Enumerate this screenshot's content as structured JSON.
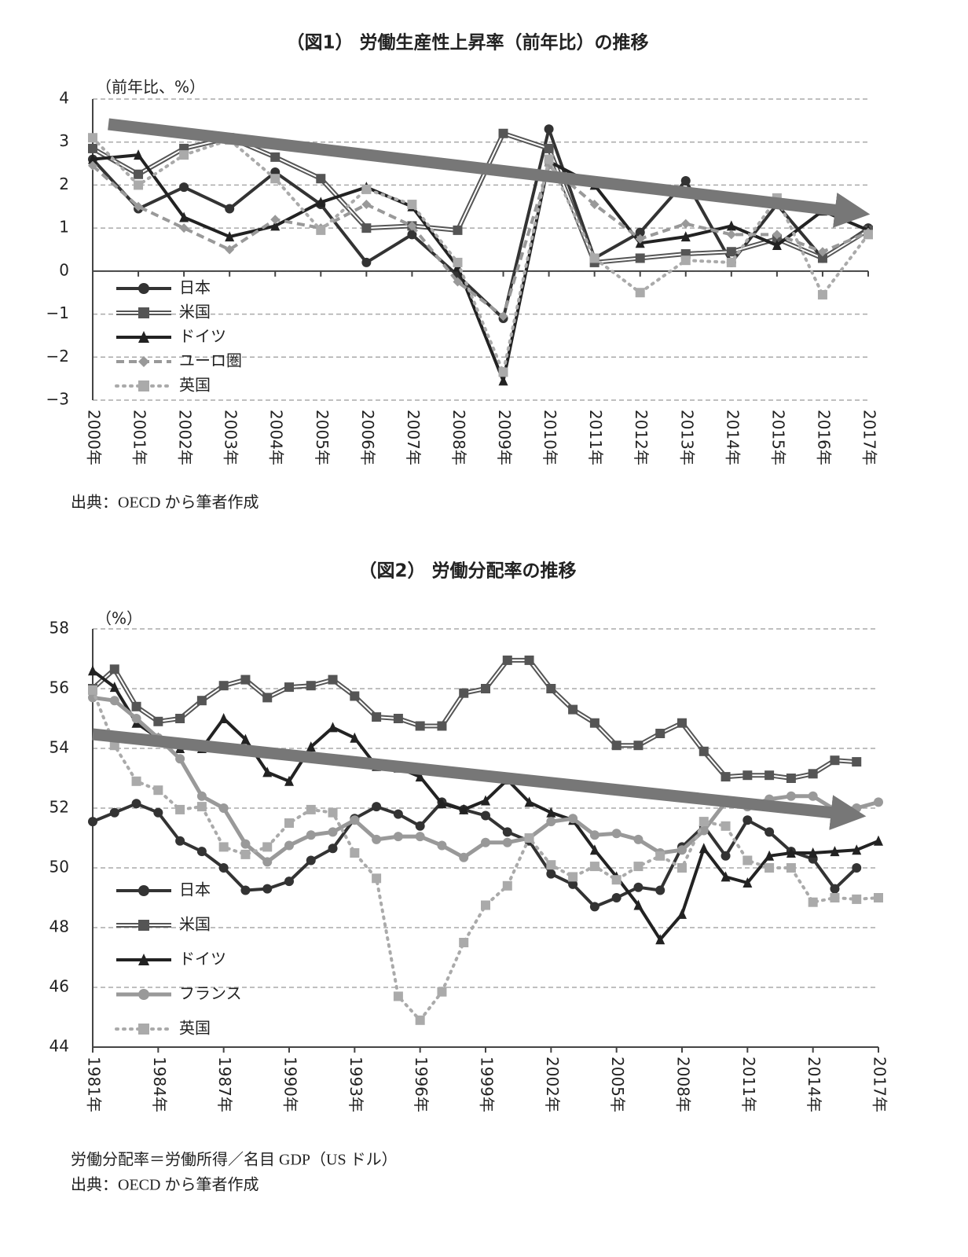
{
  "chart_data": [
    {
      "type": "line",
      "title": "（図1） 労働生産性上昇率（前年比）の推移",
      "y_label": "（前年比、%）",
      "source": "出典：OECD から筆者作成",
      "categories": [
        "2000年",
        "2001年",
        "2002年",
        "2003年",
        "2004年",
        "2005年",
        "2006年",
        "2007年",
        "2008年",
        "2009年",
        "2010年",
        "2011年",
        "2012年",
        "2013年",
        "2014年",
        "2015年",
        "2016年",
        "2017年"
      ],
      "ylim": [
        -3,
        4
      ],
      "yticks": [
        {
          "value": -3,
          "label": "−3"
        },
        {
          "value": -2,
          "label": "−2"
        },
        {
          "value": -1,
          "label": "−1"
        },
        0,
        1,
        2,
        3,
        4
      ],
      "grid": true,
      "series": [
        {
          "name": "日本",
          "color": "#333333",
          "marker": "circle",
          "line_style": "solid",
          "values": [
            2.6,
            1.45,
            1.95,
            1.45,
            2.3,
            1.55,
            0.2,
            0.85,
            -0.1,
            -1.1,
            3.3,
            0.3,
            0.9,
            2.1,
            0.2,
            1.55,
            0.3,
            1.0
          ]
        },
        {
          "name": "米国",
          "color": "#555555",
          "marker": "square",
          "line_style": "double",
          "values": [
            2.85,
            2.25,
            2.85,
            3.1,
            2.65,
            2.15,
            1.0,
            1.05,
            0.95,
            3.2,
            2.85,
            0.2,
            0.3,
            0.4,
            0.45,
            0.75,
            0.3,
            0.95
          ]
        },
        {
          "name": "ドイツ",
          "color": "#222222",
          "marker": "triangle",
          "line_style": "solid",
          "values": [
            2.6,
            2.7,
            1.25,
            0.8,
            1.05,
            1.6,
            1.95,
            1.5,
            0.1,
            -2.55,
            2.55,
            2.0,
            0.65,
            0.8,
            1.05,
            0.6,
            1.4,
            0.95
          ]
        },
        {
          "name": "ユーロ圏",
          "color": "#999999",
          "marker": "diamond",
          "line_style": "dashed",
          "values": [
            2.45,
            1.5,
            1.0,
            0.5,
            1.2,
            1.0,
            1.55,
            1.05,
            -0.25,
            -1.05,
            2.45,
            1.55,
            0.75,
            1.1,
            0.85,
            0.85,
            0.45,
            0.9
          ]
        },
        {
          "name": "英国",
          "color": "#aaaaaa",
          "marker": "square",
          "line_style": "dotted",
          "values": [
            3.1,
            2.0,
            2.7,
            3.05,
            2.15,
            0.95,
            1.9,
            1.55,
            0.2,
            -2.35,
            2.6,
            0.3,
            -0.5,
            0.25,
            0.2,
            1.7,
            -0.55,
            0.85
          ]
        }
      ]
    },
    {
      "type": "line",
      "title": "（図2） 労働分配率の推移",
      "y_label": "（%）",
      "note": "労働分配率＝労働所得／名目 GDP（US ドル）",
      "source": "出典：OECD から筆者作成",
      "categories": [
        "1981年",
        null,
        null,
        "1984年",
        null,
        null,
        "1987年",
        null,
        null,
        "1990年",
        null,
        null,
        "1993年",
        null,
        null,
        "1996年",
        null,
        null,
        "1999年",
        null,
        null,
        "2002年",
        null,
        null,
        "2005年",
        null,
        null,
        "2008年",
        null,
        null,
        "2011年",
        null,
        null,
        "2014年",
        null,
        null,
        "2017年"
      ],
      "ylim": [
        44,
        58
      ],
      "yticks": [
        44,
        46,
        48,
        50,
        52,
        54,
        56,
        58
      ],
      "grid": true,
      "series": [
        {
          "name": "日本",
          "color": "#333333",
          "marker": "circle",
          "line_style": "solid",
          "values": [
            51.55,
            51.85,
            52.15,
            51.85,
            50.9,
            50.55,
            50.0,
            49.25,
            49.3,
            49.55,
            50.25,
            50.65,
            51.65,
            52.05,
            51.8,
            51.4,
            52.2,
            51.95,
            51.75,
            51.2,
            50.9,
            49.8,
            49.45,
            48.7,
            49.0,
            49.35,
            49.25,
            50.7,
            51.4,
            50.4,
            51.6,
            51.2,
            50.55,
            50.3,
            49.3,
            50.0,
            null
          ]
        },
        {
          "name": "米国",
          "color": "#555555",
          "marker": "square",
          "line_style": "double",
          "values": [
            56.0,
            56.65,
            55.4,
            54.9,
            55.0,
            55.6,
            56.1,
            56.3,
            55.7,
            56.05,
            56.1,
            56.3,
            55.75,
            55.05,
            55.0,
            54.75,
            54.75,
            55.85,
            56.0,
            56.95,
            56.95,
            56.0,
            55.3,
            54.85,
            54.1,
            54.1,
            54.5,
            54.85,
            53.9,
            53.05,
            53.1,
            53.1,
            53.0,
            53.15,
            53.6,
            53.55,
            null
          ]
        },
        {
          "name": "ドイツ",
          "color": "#222222",
          "marker": "triangle",
          "line_style": "solid",
          "values": [
            56.6,
            56.05,
            54.85,
            54.35,
            54.0,
            54.0,
            55.0,
            54.3,
            53.2,
            52.9,
            54.05,
            54.7,
            54.35,
            53.4,
            53.35,
            53.05,
            52.15,
            51.95,
            52.25,
            52.95,
            52.2,
            51.85,
            51.6,
            50.6,
            49.7,
            48.75,
            47.6,
            48.45,
            50.65,
            49.7,
            49.5,
            50.4,
            50.5,
            50.5,
            50.55,
            50.6,
            50.9
          ]
        },
        {
          "name": "フランス",
          "color": "#999999",
          "marker": "circle",
          "line_style": "thick",
          "values": [
            55.7,
            55.6,
            55.0,
            54.35,
            53.65,
            52.4,
            52.0,
            50.8,
            50.2,
            50.75,
            51.1,
            51.2,
            51.6,
            50.95,
            51.05,
            51.05,
            50.75,
            50.35,
            50.85,
            50.85,
            51.0,
            51.55,
            51.65,
            51.1,
            51.15,
            50.95,
            50.5,
            50.6,
            51.25,
            52.2,
            52.05,
            52.3,
            52.4,
            52.4,
            51.95,
            52.0,
            52.2
          ]
        },
        {
          "name": "英国",
          "color": "#aaaaaa",
          "marker": "square",
          "line_style": "dotted",
          "values": [
            55.95,
            54.1,
            52.9,
            52.6,
            51.95,
            52.05,
            50.7,
            50.45,
            50.7,
            51.5,
            51.95,
            51.85,
            50.5,
            49.65,
            45.7,
            44.9,
            45.85,
            47.5,
            48.75,
            49.4,
            51.0,
            50.1,
            49.7,
            50.05,
            49.6,
            50.05,
            50.4,
            50.0,
            51.55,
            51.4,
            50.25,
            50.0,
            50.0,
            48.85,
            49.0,
            48.95,
            49.0
          ]
        }
      ]
    }
  ]
}
